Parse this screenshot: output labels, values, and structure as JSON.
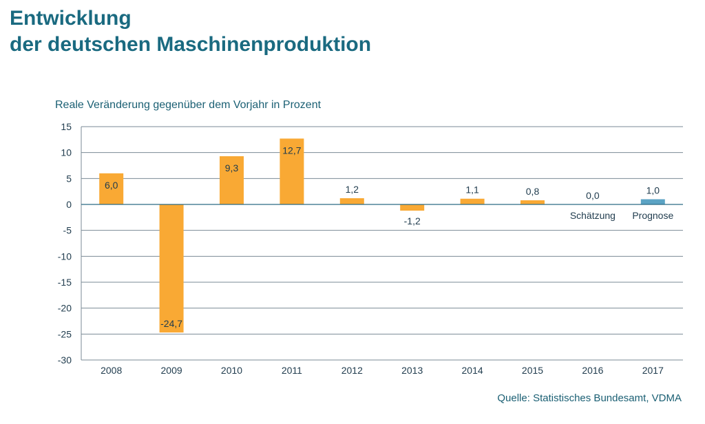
{
  "title_line1": "Entwicklung",
  "title_line2": "der deutschen Maschinenproduktion",
  "source": "Quelle: Statistisches Bundesamt, VDMA",
  "colors": {
    "bar": "#f9a934",
    "forecast_bar": "#5ba3c4",
    "title": "#1a6a80",
    "grid": "#7a8a94"
  },
  "chart_data": {
    "type": "bar",
    "title": "",
    "ylabel": "Reale Veränderung gegenüber dem Vorjahr in Prozent",
    "xlabel": "",
    "categories": [
      "2008",
      "2009",
      "2010",
      "2011",
      "2012",
      "2013",
      "2014",
      "2015",
      "2016",
      "2017"
    ],
    "values": [
      6.0,
      -24.7,
      9.3,
      12.7,
      1.2,
      -1.2,
      1.1,
      0.8,
      0.0,
      1.0
    ],
    "data_labels": [
      "6,0",
      "-24,7",
      "9,3",
      "12,7",
      "1,2",
      "-1,2",
      "1,1",
      "0,8",
      "0,0",
      "1,0"
    ],
    "annotations": [
      {
        "category": "2016",
        "text": "Schätzung"
      },
      {
        "category": "2017",
        "text": "Prognose"
      }
    ],
    "forecast_categories": [
      "2017"
    ],
    "ylim": [
      -30,
      15
    ],
    "yticks": [
      15,
      10,
      5,
      0,
      -5,
      -10,
      -15,
      -20,
      -25,
      -30
    ],
    "grid": true,
    "legend": "none"
  }
}
